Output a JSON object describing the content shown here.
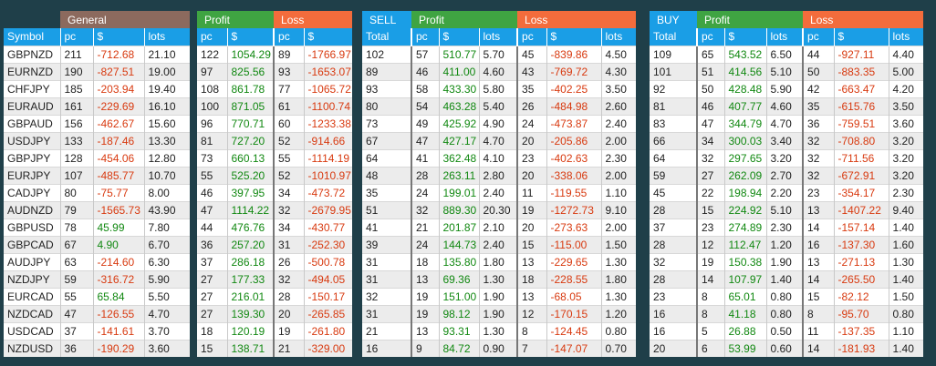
{
  "colors": {
    "general": "#8c6a5e",
    "profit": "#3fa442",
    "loss": "#f36c3c",
    "blue": "#1a9ee6"
  },
  "symbol_header": "Symbol",
  "general": {
    "title": "General",
    "cols": [
      "pc",
      "$",
      "lots"
    ],
    "rows": [
      {
        "symbol": "GBPNZD",
        "pc": "211",
        "usd": "-712.68",
        "lots": "21.10"
      },
      {
        "symbol": "EURNZD",
        "pc": "190",
        "usd": "-827.51",
        "lots": "19.00"
      },
      {
        "symbol": "CHFJPY",
        "pc": "185",
        "usd": "-203.94",
        "lots": "19.40"
      },
      {
        "symbol": "EURAUD",
        "pc": "161",
        "usd": "-229.69",
        "lots": "16.10"
      },
      {
        "symbol": "GBPAUD",
        "pc": "156",
        "usd": "-462.67",
        "lots": "15.60"
      },
      {
        "symbol": "USDJPY",
        "pc": "133",
        "usd": "-187.46",
        "lots": "13.30"
      },
      {
        "symbol": "GBPJPY",
        "pc": "128",
        "usd": "-454.06",
        "lots": "12.80"
      },
      {
        "symbol": "EURJPY",
        "pc": "107",
        "usd": "-485.77",
        "lots": "10.70"
      },
      {
        "symbol": "CADJPY",
        "pc": "80",
        "usd": "-75.77",
        "lots": "8.00"
      },
      {
        "symbol": "AUDNZD",
        "pc": "79",
        "usd": "-1565.73",
        "lots": "43.90"
      },
      {
        "symbol": "GBPUSD",
        "pc": "78",
        "usd": "45.99",
        "lots": "7.80"
      },
      {
        "symbol": "GBPCAD",
        "pc": "67",
        "usd": "4.90",
        "lots": "6.70"
      },
      {
        "symbol": "AUDJPY",
        "pc": "63",
        "usd": "-214.60",
        "lots": "6.30"
      },
      {
        "symbol": "NZDJPY",
        "pc": "59",
        "usd": "-316.72",
        "lots": "5.90"
      },
      {
        "symbol": "EURCAD",
        "pc": "55",
        "usd": "65.84",
        "lots": "5.50"
      },
      {
        "symbol": "NZDCAD",
        "pc": "47",
        "usd": "-126.55",
        "lots": "4.70"
      },
      {
        "symbol": "USDCAD",
        "pc": "37",
        "usd": "-141.61",
        "lots": "3.70"
      },
      {
        "symbol": "NZDUSD",
        "pc": "36",
        "usd": "-190.29",
        "lots": "3.60"
      }
    ]
  },
  "pl": {
    "profit_title": "Profit",
    "loss_title": "Loss",
    "cols": [
      "pc",
      "$",
      "pc",
      "$"
    ],
    "rows": [
      [
        "122",
        "1054.29",
        "89",
        "-1766.97"
      ],
      [
        "97",
        "825.56",
        "93",
        "-1653.07"
      ],
      [
        "108",
        "861.78",
        "77",
        "-1065.72"
      ],
      [
        "100",
        "871.05",
        "61",
        "-1100.74"
      ],
      [
        "96",
        "770.71",
        "60",
        "-1233.38"
      ],
      [
        "81",
        "727.20",
        "52",
        "-914.66"
      ],
      [
        "73",
        "660.13",
        "55",
        "-1114.19"
      ],
      [
        "55",
        "525.20",
        "52",
        "-1010.97"
      ],
      [
        "46",
        "397.95",
        "34",
        "-473.72"
      ],
      [
        "47",
        "1114.22",
        "32",
        "-2679.95"
      ],
      [
        "44",
        "476.76",
        "34",
        "-430.77"
      ],
      [
        "36",
        "257.20",
        "31",
        "-252.30"
      ],
      [
        "37",
        "286.18",
        "26",
        "-500.78"
      ],
      [
        "27",
        "177.33",
        "32",
        "-494.05"
      ],
      [
        "27",
        "216.01",
        "28",
        "-150.17"
      ],
      [
        "27",
        "139.30",
        "20",
        "-265.85"
      ],
      [
        "18",
        "120.19",
        "19",
        "-261.80"
      ],
      [
        "15",
        "138.71",
        "21",
        "-329.00"
      ]
    ]
  },
  "sell": {
    "title": "SELL",
    "profit_title": "Profit",
    "loss_title": "Loss",
    "cols": [
      "Total",
      "pc",
      "$",
      "lots",
      "pc",
      "$",
      "lots"
    ],
    "rows": [
      [
        "102",
        "57",
        "510.77",
        "5.70",
        "45",
        "-839.86",
        "4.50"
      ],
      [
        "89",
        "46",
        "411.00",
        "4.60",
        "43",
        "-769.72",
        "4.30"
      ],
      [
        "93",
        "58",
        "433.30",
        "5.80",
        "35",
        "-402.25",
        "3.50"
      ],
      [
        "80",
        "54",
        "463.28",
        "5.40",
        "26",
        "-484.98",
        "2.60"
      ],
      [
        "73",
        "49",
        "425.92",
        "4.90",
        "24",
        "-473.87",
        "2.40"
      ],
      [
        "67",
        "47",
        "427.17",
        "4.70",
        "20",
        "-205.86",
        "2.00"
      ],
      [
        "64",
        "41",
        "362.48",
        "4.10",
        "23",
        "-402.63",
        "2.30"
      ],
      [
        "48",
        "28",
        "263.11",
        "2.80",
        "20",
        "-338.06",
        "2.00"
      ],
      [
        "35",
        "24",
        "199.01",
        "2.40",
        "11",
        "-119.55",
        "1.10"
      ],
      [
        "51",
        "32",
        "889.30",
        "20.30",
        "19",
        "-1272.73",
        "9.10"
      ],
      [
        "41",
        "21",
        "201.87",
        "2.10",
        "20",
        "-273.63",
        "2.00"
      ],
      [
        "39",
        "24",
        "144.73",
        "2.40",
        "15",
        "-115.00",
        "1.50"
      ],
      [
        "31",
        "18",
        "135.80",
        "1.80",
        "13",
        "-229.65",
        "1.30"
      ],
      [
        "31",
        "13",
        "69.36",
        "1.30",
        "18",
        "-228.55",
        "1.80"
      ],
      [
        "32",
        "19",
        "151.00",
        "1.90",
        "13",
        "-68.05",
        "1.30"
      ],
      [
        "31",
        "19",
        "98.12",
        "1.90",
        "12",
        "-170.15",
        "1.20"
      ],
      [
        "21",
        "13",
        "93.31",
        "1.30",
        "8",
        "-124.45",
        "0.80"
      ],
      [
        "16",
        "9",
        "84.72",
        "0.90",
        "7",
        "-147.07",
        "0.70"
      ]
    ]
  },
  "buy": {
    "title": "BUY",
    "profit_title": "Profit",
    "loss_title": "Loss",
    "cols": [
      "Total",
      "pc",
      "$",
      "lots",
      "pc",
      "$",
      "lots"
    ],
    "rows": [
      [
        "109",
        "65",
        "543.52",
        "6.50",
        "44",
        "-927.11",
        "4.40"
      ],
      [
        "101",
        "51",
        "414.56",
        "5.10",
        "50",
        "-883.35",
        "5.00"
      ],
      [
        "92",
        "50",
        "428.48",
        "5.90",
        "42",
        "-663.47",
        "4.20"
      ],
      [
        "81",
        "46",
        "407.77",
        "4.60",
        "35",
        "-615.76",
        "3.50"
      ],
      [
        "83",
        "47",
        "344.79",
        "4.70",
        "36",
        "-759.51",
        "3.60"
      ],
      [
        "66",
        "34",
        "300.03",
        "3.40",
        "32",
        "-708.80",
        "3.20"
      ],
      [
        "64",
        "32",
        "297.65",
        "3.20",
        "32",
        "-711.56",
        "3.20"
      ],
      [
        "59",
        "27",
        "262.09",
        "2.70",
        "32",
        "-672.91",
        "3.20"
      ],
      [
        "45",
        "22",
        "198.94",
        "2.20",
        "23",
        "-354.17",
        "2.30"
      ],
      [
        "28",
        "15",
        "224.92",
        "5.10",
        "13",
        "-1407.22",
        "9.40"
      ],
      [
        "37",
        "23",
        "274.89",
        "2.30",
        "14",
        "-157.14",
        "1.40"
      ],
      [
        "28",
        "12",
        "112.47",
        "1.20",
        "16",
        "-137.30",
        "1.60"
      ],
      [
        "32",
        "19",
        "150.38",
        "1.90",
        "13",
        "-271.13",
        "1.30"
      ],
      [
        "28",
        "14",
        "107.97",
        "1.40",
        "14",
        "-265.50",
        "1.40"
      ],
      [
        "23",
        "8",
        "65.01",
        "0.80",
        "15",
        "-82.12",
        "1.50"
      ],
      [
        "16",
        "8",
        "41.18",
        "0.80",
        "8",
        "-95.70",
        "0.80"
      ],
      [
        "16",
        "5",
        "26.88",
        "0.50",
        "11",
        "-137.35",
        "1.10"
      ],
      [
        "20",
        "6",
        "53.99",
        "0.60",
        "14",
        "-181.93",
        "1.40"
      ]
    ]
  }
}
